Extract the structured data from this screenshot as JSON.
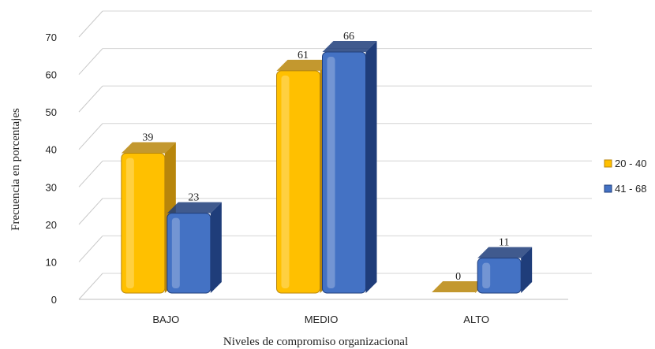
{
  "chart_data": {
    "type": "bar",
    "categories": [
      "BAJO",
      "MEDIO",
      "ALTO"
    ],
    "series": [
      {
        "name": "20 - 40",
        "values": [
          39,
          61,
          0
        ],
        "color": "#FFC000",
        "dark_color": "#B8860B"
      },
      {
        "name": "41 - 68",
        "values": [
          23,
          66,
          11
        ],
        "color": "#4472C4",
        "dark_color": "#1F3D7A"
      }
    ],
    "xlabel": "Niveles de compromiso organizacional",
    "ylabel": "Frecuencia en porcentajes",
    "ylim": [
      0,
      70
    ],
    "yticks": [
      0,
      10,
      20,
      30,
      40,
      50,
      60,
      70
    ],
    "grid": true,
    "legend": "right",
    "style": "3d-bar"
  }
}
